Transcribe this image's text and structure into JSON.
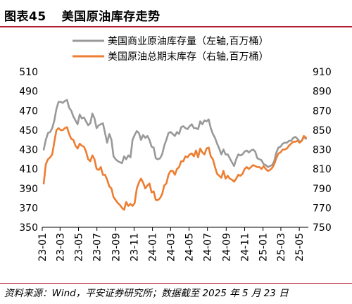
{
  "figure": {
    "number": "图表45",
    "title": "美国原油库存走势",
    "source": "资料来源：Wind，平安证券研究所；数据截至 2025 年 5 月 23 日"
  },
  "chart_data": {
    "type": "line",
    "x_ticks": [
      "23-01",
      "23-03",
      "23-05",
      "23-07",
      "23-09",
      "23-11",
      "24-01",
      "24-03",
      "24-05",
      "24-07",
      "24-09",
      "24-11",
      "25-01",
      "25-03",
      "25-05"
    ],
    "left_axis": {
      "range": [
        350,
        510
      ],
      "ticks": [
        350,
        370,
        390,
        410,
        430,
        450,
        470,
        490,
        510
      ]
    },
    "right_axis": {
      "range": [
        750,
        910
      ],
      "ticks": [
        750,
        770,
        790,
        810,
        830,
        850,
        870,
        890,
        910
      ]
    },
    "legend_position": "top-right",
    "grid": false,
    "series": [
      {
        "name": "美国商业原油库存量（左轴,百万桶）",
        "axis": "left",
        "color": "#999999",
        "x": [
          "2023-01-06",
          "2023-01-13",
          "2023-01-20",
          "2023-01-27",
          "2023-02-03",
          "2023-02-10",
          "2023-02-17",
          "2023-02-24",
          "2023-03-03",
          "2023-03-10",
          "2023-03-17",
          "2023-03-24",
          "2023-03-31",
          "2023-04-07",
          "2023-04-14",
          "2023-04-21",
          "2023-04-28",
          "2023-05-05",
          "2023-05-12",
          "2023-05-19",
          "2023-05-26",
          "2023-06-02",
          "2023-06-09",
          "2023-06-16",
          "2023-06-23",
          "2023-06-30",
          "2023-07-07",
          "2023-07-14",
          "2023-07-21",
          "2023-07-28",
          "2023-08-04",
          "2023-08-11",
          "2023-08-18",
          "2023-08-25",
          "2023-09-01",
          "2023-09-08",
          "2023-09-15",
          "2023-09-22",
          "2023-09-29",
          "2023-10-06",
          "2023-10-13",
          "2023-10-20",
          "2023-10-27",
          "2023-11-03",
          "2023-11-10",
          "2023-11-17",
          "2023-11-24",
          "2023-12-01",
          "2023-12-08",
          "2023-12-15",
          "2023-12-22",
          "2023-12-29",
          "2024-01-05",
          "2024-01-12",
          "2024-01-19",
          "2024-01-26",
          "2024-02-02",
          "2024-02-09",
          "2024-02-16",
          "2024-02-23",
          "2024-03-01",
          "2024-03-08",
          "2024-03-15",
          "2024-03-22",
          "2024-03-29",
          "2024-04-05",
          "2024-04-12",
          "2024-04-19",
          "2024-04-26",
          "2024-05-03",
          "2024-05-10",
          "2024-05-17",
          "2024-05-24",
          "2024-05-31",
          "2024-06-07",
          "2024-06-14",
          "2024-06-21",
          "2024-06-28",
          "2024-07-05",
          "2024-07-12",
          "2024-07-19",
          "2024-07-26",
          "2024-08-02",
          "2024-08-09",
          "2024-08-16",
          "2024-08-23",
          "2024-08-30",
          "2024-09-06",
          "2024-09-13",
          "2024-09-20",
          "2024-09-27",
          "2024-10-04",
          "2024-10-11",
          "2024-10-18",
          "2024-10-25",
          "2024-11-01",
          "2024-11-08",
          "2024-11-15",
          "2024-11-22",
          "2024-11-29",
          "2024-12-06",
          "2024-12-13",
          "2024-12-20",
          "2024-12-27",
          "2025-01-03",
          "2025-01-10",
          "2025-01-17",
          "2025-01-24",
          "2025-01-31",
          "2025-02-07",
          "2025-02-14",
          "2025-02-21",
          "2025-02-28",
          "2025-03-07",
          "2025-03-14",
          "2025-03-21",
          "2025-03-28",
          "2025-04-04",
          "2025-04-11",
          "2025-04-18",
          "2025-04-25",
          "2025-05-02",
          "2025-05-09",
          "2025-05-16",
          "2025-05-23"
        ],
        "values": [
          430,
          440,
          447,
          448,
          452,
          460,
          472,
          479,
          479,
          478,
          480,
          481,
          473,
          470,
          464,
          460,
          456,
          466,
          462,
          463,
          459,
          455,
          457,
          467,
          462,
          452,
          455,
          456,
          457,
          447,
          437,
          446,
          440,
          423,
          420,
          418,
          417,
          416,
          423,
          420,
          424,
          422,
          440,
          445,
          449,
          447,
          440,
          445,
          442,
          444,
          440,
          433,
          432,
          421,
          420,
          421,
          425,
          434,
          440,
          447,
          448,
          446,
          444,
          448,
          446,
          453,
          454,
          452,
          451,
          454,
          456,
          452,
          452,
          451,
          459,
          456,
          460,
          459,
          461,
          452,
          446,
          442,
          436,
          431,
          425,
          430,
          425,
          425,
          421,
          417,
          413,
          420,
          425,
          424,
          425,
          428,
          429,
          427,
          429,
          430,
          428,
          421,
          420,
          419,
          415,
          414,
          412,
          413,
          414,
          418,
          427,
          432,
          433,
          436,
          437,
          437,
          439,
          439,
          442,
          443,
          441,
          438,
          439,
          443,
          441
        ]
      },
      {
        "name": "美国原油总期末库存（右轴,百万桶）",
        "axis": "right",
        "color": "#ed7d31",
        "x": [
          "2023-01-06",
          "2023-01-13",
          "2023-01-20",
          "2023-01-27",
          "2023-02-03",
          "2023-02-10",
          "2023-02-17",
          "2023-02-24",
          "2023-03-03",
          "2023-03-10",
          "2023-03-17",
          "2023-03-24",
          "2023-03-31",
          "2023-04-07",
          "2023-04-14",
          "2023-04-21",
          "2023-04-28",
          "2023-05-05",
          "2023-05-12",
          "2023-05-19",
          "2023-05-26",
          "2023-06-02",
          "2023-06-09",
          "2023-06-16",
          "2023-06-23",
          "2023-06-30",
          "2023-07-07",
          "2023-07-14",
          "2023-07-21",
          "2023-07-28",
          "2023-08-04",
          "2023-08-11",
          "2023-08-18",
          "2023-08-25",
          "2023-09-01",
          "2023-09-08",
          "2023-09-15",
          "2023-09-22",
          "2023-09-29",
          "2023-10-06",
          "2023-10-13",
          "2023-10-20",
          "2023-10-27",
          "2023-11-03",
          "2023-11-10",
          "2023-11-17",
          "2023-11-24",
          "2023-12-01",
          "2023-12-08",
          "2023-12-15",
          "2023-12-22",
          "2023-12-29",
          "2024-01-05",
          "2024-01-12",
          "2024-01-19",
          "2024-01-26",
          "2024-02-02",
          "2024-02-09",
          "2024-02-16",
          "2024-02-23",
          "2024-03-01",
          "2024-03-08",
          "2024-03-15",
          "2024-03-22",
          "2024-03-29",
          "2024-04-05",
          "2024-04-12",
          "2024-04-19",
          "2024-04-26",
          "2024-05-03",
          "2024-05-10",
          "2024-05-17",
          "2024-05-24",
          "2024-05-31",
          "2024-06-07",
          "2024-06-14",
          "2024-06-21",
          "2024-06-28",
          "2024-07-05",
          "2024-07-12",
          "2024-07-19",
          "2024-07-26",
          "2024-08-02",
          "2024-08-09",
          "2024-08-16",
          "2024-08-23",
          "2024-08-30",
          "2024-09-06",
          "2024-09-13",
          "2024-09-20",
          "2024-09-27",
          "2024-10-04",
          "2024-10-11",
          "2024-10-18",
          "2024-10-25",
          "2024-11-01",
          "2024-11-08",
          "2024-11-15",
          "2024-11-22",
          "2024-11-29",
          "2024-12-06",
          "2024-12-13",
          "2024-12-20",
          "2024-12-27",
          "2025-01-03",
          "2025-01-10",
          "2025-01-17",
          "2025-01-24",
          "2025-01-31",
          "2025-02-07",
          "2025-02-14",
          "2025-02-21",
          "2025-02-28",
          "2025-03-07",
          "2025-03-14",
          "2025-03-21",
          "2025-03-28",
          "2025-04-04",
          "2025-04-11",
          "2025-04-18",
          "2025-04-25",
          "2025-05-02",
          "2025-05-09",
          "2025-05-16",
          "2025-05-23"
        ],
        "values": [
          795,
          815,
          820,
          822,
          825,
          838,
          850,
          852,
          850,
          850,
          852,
          853,
          846,
          841,
          840,
          834,
          831,
          836,
          834,
          833,
          828,
          820,
          818,
          824,
          820,
          810,
          809,
          812,
          804,
          804,
          799,
          792,
          790,
          781,
          778,
          775,
          773,
          770,
          768,
          776,
          772,
          774,
          772,
          775,
          790,
          796,
          800,
          796,
          790,
          793,
          795,
          786,
          787,
          778,
          778,
          780,
          784,
          793,
          795,
          804,
          808,
          808,
          804,
          810,
          812,
          818,
          818,
          823,
          822,
          825,
          826,
          823,
          829,
          822,
          831,
          827,
          825,
          831,
          832,
          823,
          820,
          812,
          805,
          803,
          801,
          808,
          800,
          803,
          800,
          799,
          797,
          800,
          804,
          803,
          805,
          810,
          812,
          810,
          812,
          814,
          813,
          812,
          812,
          810,
          813,
          810,
          808,
          809,
          811,
          815,
          821,
          826,
          827,
          830,
          830,
          831,
          834,
          836,
          838,
          838,
          839,
          837,
          839,
          844,
          842
        ]
      }
    ]
  }
}
